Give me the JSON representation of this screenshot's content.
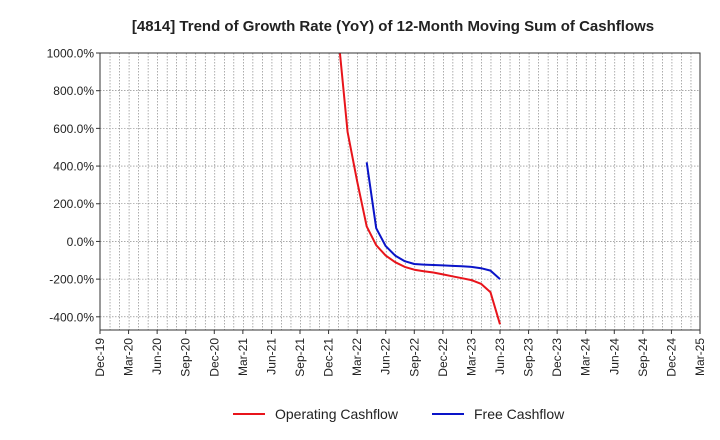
{
  "chart_data": {
    "type": "line",
    "title": "[4814]  Trend of Growth Rate (YoY) of 12-Month Moving Sum of Cashflows",
    "xlabel": "",
    "ylabel": "",
    "ylim": [
      -470,
      1000
    ],
    "yticks": [
      1000,
      800,
      600,
      400,
      200,
      0,
      -200,
      -400
    ],
    "ytick_labels": [
      "1000.0%",
      "800.0%",
      "600.0%",
      "400.0%",
      "200.0%",
      "0.0%",
      "-200.0%",
      "-400.0%"
    ],
    "x_tick_labels": [
      "Dec-19",
      "Mar-20",
      "Jun-20",
      "Sep-20",
      "Dec-20",
      "Mar-21",
      "Jun-21",
      "Sep-21",
      "Dec-21",
      "Mar-22",
      "Jun-22",
      "Sep-22",
      "Dec-22",
      "Mar-23",
      "Jun-23",
      "Sep-23",
      "Dec-23",
      "Mar-24",
      "Jun-24",
      "Sep-24",
      "Dec-24",
      "Mar-25"
    ],
    "x_range": [
      "2019-12",
      "2025-03"
    ],
    "grid": true,
    "legend_position": "bottom",
    "series": [
      {
        "name": "Operating Cashflow",
        "color": "#e8141b",
        "points": [
          [
            "2022-01",
            1100
          ],
          [
            "2022-02",
            580
          ],
          [
            "2022-03",
            320
          ],
          [
            "2022-04",
            80
          ],
          [
            "2022-05",
            -20
          ],
          [
            "2022-06",
            -75
          ],
          [
            "2022-07",
            -110
          ],
          [
            "2022-08",
            -135
          ],
          [
            "2022-09",
            -150
          ],
          [
            "2022-10",
            -158
          ],
          [
            "2022-11",
            -165
          ],
          [
            "2022-12",
            -175
          ],
          [
            "2023-01",
            -185
          ],
          [
            "2023-02",
            -195
          ],
          [
            "2023-03",
            -205
          ],
          [
            "2023-04",
            -225
          ],
          [
            "2023-05",
            -270
          ],
          [
            "2023-06",
            -440
          ]
        ]
      },
      {
        "name": "Free Cashflow",
        "color": "#0a14c8",
        "points": [
          [
            "2022-04",
            420
          ],
          [
            "2022-05",
            70
          ],
          [
            "2022-06",
            -25
          ],
          [
            "2022-07",
            -75
          ],
          [
            "2022-08",
            -105
          ],
          [
            "2022-09",
            -120
          ],
          [
            "2022-10",
            -123
          ],
          [
            "2022-11",
            -125
          ],
          [
            "2022-12",
            -127
          ],
          [
            "2023-01",
            -130
          ],
          [
            "2023-02",
            -132
          ],
          [
            "2023-03",
            -135
          ],
          [
            "2023-04",
            -142
          ],
          [
            "2023-05",
            -155
          ],
          [
            "2023-06",
            -200
          ]
        ]
      }
    ]
  }
}
